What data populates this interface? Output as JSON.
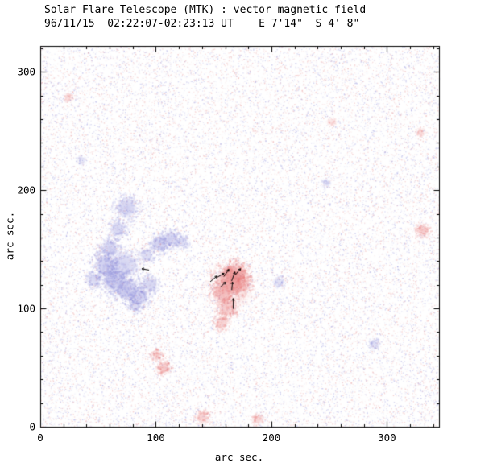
{
  "chart_data": {
    "type": "heatmap",
    "title": "Solar Flare Telescope (MTK) : vector magnetic field",
    "subtitle": "96/11/15  02:22:07-02:23:13 UT    E 7'14\"  S 4' 8\"",
    "xlabel": "arc sec.",
    "ylabel": "arc sec.",
    "xlim": [
      0,
      345
    ],
    "ylim": [
      0,
      322
    ],
    "x_ticks": [
      0,
      100,
      200,
      300
    ],
    "y_ticks": [
      0,
      100,
      200,
      300
    ],
    "minor_tick_interval": 20,
    "grid": false,
    "legend": "none",
    "colors": {
      "background": "#ffffff",
      "axis": "#000000",
      "vector": "#000000",
      "negative_polarity": "#8282d8",
      "positive_polarity": "#e87474",
      "noise_blue": "#9a9ade",
      "noise_red": "#eaa0a0"
    },
    "noise": {
      "density_points": 30000,
      "seed": 7
    },
    "regions": [
      {
        "polarity": "negative",
        "description": "main negative (blue) magnetic region, hook shaped, approx x 40-130, y 100-195 arcsec",
        "blobs": [
          {
            "x": 75,
            "y": 185,
            "r": 9,
            "i": 0.5
          },
          {
            "x": 67,
            "y": 167,
            "r": 7,
            "i": 0.45
          },
          {
            "x": 60,
            "y": 151,
            "r": 8,
            "i": 0.5
          },
          {
            "x": 57,
            "y": 136,
            "r": 10,
            "i": 0.55
          },
          {
            "x": 64,
            "y": 124,
            "r": 11,
            "i": 0.6
          },
          {
            "x": 75,
            "y": 116,
            "r": 10,
            "i": 0.6
          },
          {
            "x": 86,
            "y": 110,
            "r": 8,
            "i": 0.5
          },
          {
            "x": 73,
            "y": 137,
            "r": 12,
            "i": 0.45
          },
          {
            "x": 92,
            "y": 145,
            "r": 6,
            "i": 0.4
          },
          {
            "x": 95,
            "y": 120,
            "r": 7,
            "i": 0.45
          },
          {
            "x": 103,
            "y": 155,
            "r": 7,
            "i": 0.5
          },
          {
            "x": 113,
            "y": 159,
            "r": 7,
            "i": 0.5
          },
          {
            "x": 123,
            "y": 156,
            "r": 5,
            "i": 0.4
          },
          {
            "x": 47,
            "y": 124,
            "r": 6,
            "i": 0.4
          },
          {
            "x": 82,
            "y": 102,
            "r": 5,
            "i": 0.4
          }
        ]
      },
      {
        "polarity": "positive",
        "description": "main positive (red) magnetic region, approx x 140-190, y 80-140 arcsec",
        "blobs": [
          {
            "x": 166,
            "y": 117,
            "r": 19,
            "i": 0.18
          },
          {
            "x": 165,
            "y": 124,
            "r": 13,
            "i": 0.7
          },
          {
            "x": 170,
            "y": 130,
            "r": 9,
            "i": 0.6
          },
          {
            "x": 174,
            "y": 120,
            "r": 8,
            "i": 0.45
          },
          {
            "x": 158,
            "y": 113,
            "r": 9,
            "i": 0.55
          },
          {
            "x": 162,
            "y": 100,
            "r": 8,
            "i": 0.5
          },
          {
            "x": 157,
            "y": 88,
            "r": 6,
            "i": 0.45
          }
        ]
      }
    ],
    "spots": [
      {
        "polarity": "positive",
        "x": 101,
        "y": 60,
        "r": 4,
        "i": 0.5
      },
      {
        "polarity": "positive",
        "x": 107,
        "y": 50,
        "r": 5,
        "i": 0.55
      },
      {
        "polarity": "positive",
        "x": 140,
        "y": 8,
        "r": 5,
        "i": 0.45
      },
      {
        "polarity": "positive",
        "x": 188,
        "y": 6,
        "r": 4,
        "i": 0.4
      },
      {
        "polarity": "positive",
        "x": 331,
        "y": 166,
        "r": 5,
        "i": 0.5
      },
      {
        "polarity": "positive",
        "x": 329,
        "y": 249,
        "r": 3,
        "i": 0.3
      },
      {
        "polarity": "positive",
        "x": 24,
        "y": 278,
        "r": 3,
        "i": 0.3
      },
      {
        "polarity": "positive",
        "x": 252,
        "y": 258,
        "r": 3,
        "i": 0.25
      },
      {
        "polarity": "negative",
        "x": 207,
        "y": 122,
        "r": 4,
        "i": 0.3
      },
      {
        "polarity": "negative",
        "x": 289,
        "y": 70,
        "r": 4,
        "i": 0.35
      },
      {
        "polarity": "negative",
        "x": 247,
        "y": 206,
        "r": 3,
        "i": 0.25
      },
      {
        "polarity": "negative",
        "x": 36,
        "y": 225,
        "r": 3,
        "i": 0.25
      }
    ],
    "vectors": [
      {
        "x": 150,
        "y": 125,
        "angle": 40,
        "len": 11
      },
      {
        "x": 156,
        "y": 128,
        "angle": 30,
        "len": 10
      },
      {
        "x": 161,
        "y": 130,
        "angle": 55,
        "len": 11
      },
      {
        "x": 167,
        "y": 127,
        "angle": 70,
        "len": 12
      },
      {
        "x": 171,
        "y": 131,
        "angle": 50,
        "len": 10
      },
      {
        "x": 158,
        "y": 120,
        "angle": 45,
        "len": 9
      },
      {
        "x": 166,
        "y": 119,
        "angle": 85,
        "len": 10
      },
      {
        "x": 167,
        "y": 104,
        "angle": 90,
        "len": 13
      },
      {
        "x": 91,
        "y": 133,
        "angle": 170,
        "len": 9
      }
    ]
  }
}
